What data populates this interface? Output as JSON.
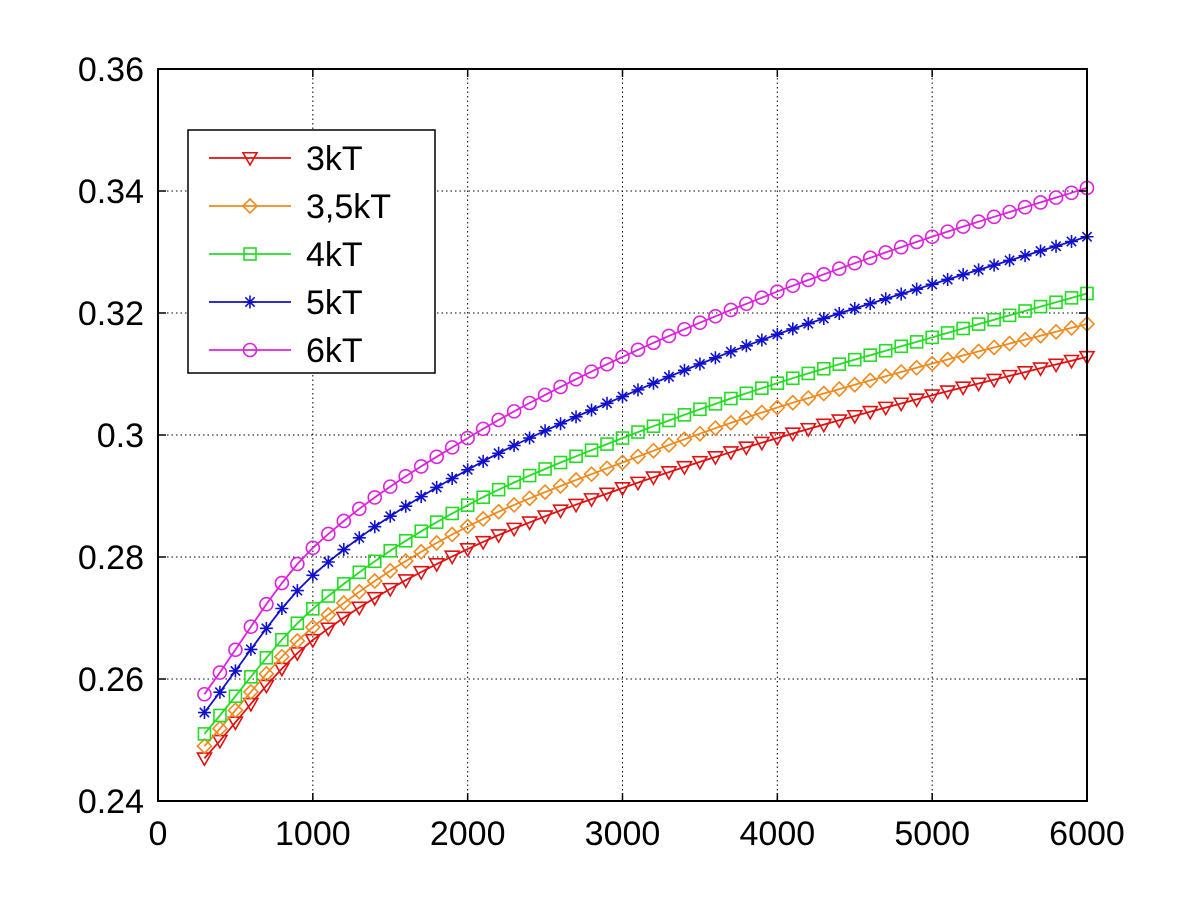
{
  "chart_data": {
    "type": "line",
    "title": "",
    "xlabel": "",
    "ylabel": "",
    "xlim": [
      0,
      6000
    ],
    "ylim": [
      0.24,
      0.36
    ],
    "grid": true,
    "legend_position": "top-left",
    "x_ticks": [
      "0",
      "1000",
      "2000",
      "3000",
      "4000",
      "5000",
      "6000"
    ],
    "y_ticks": [
      "0.24",
      "0.26",
      "0.28",
      "0.3",
      "0.32",
      "0.34",
      "0.36"
    ],
    "x_tick_values": [
      0,
      1000,
      2000,
      3000,
      4000,
      5000,
      6000
    ],
    "y_tick_values": [
      0.24,
      0.26,
      0.28,
      0.3,
      0.32,
      0.34,
      0.36
    ],
    "x": {
      "start": 300,
      "end": 6000,
      "step": 100
    },
    "series": [
      {
        "name": "3kT",
        "color": "#e11111",
        "marker": "triangle-down",
        "anchors": {
          "x": [
            300,
            1000,
            2000,
            3000,
            4000,
            5000,
            6000
          ],
          "y": [
            0.247,
            0.2664,
            0.2813,
            0.2913,
            0.2995,
            0.3065,
            0.3128
          ]
        }
      },
      {
        "name": "3,5kT",
        "color": "#ef8a1f",
        "marker": "diamond",
        "anchors": {
          "x": [
            300,
            1000,
            2000,
            3000,
            4000,
            5000,
            6000
          ],
          "y": [
            0.249,
            0.2685,
            0.285,
            0.2955,
            0.3045,
            0.3117,
            0.3182
          ]
        }
      },
      {
        "name": "4kT",
        "color": "#22dd22",
        "marker": "square",
        "anchors": {
          "x": [
            300,
            1000,
            2000,
            3000,
            4000,
            5000,
            6000
          ],
          "y": [
            0.251,
            0.2715,
            0.2885,
            0.2995,
            0.3085,
            0.316,
            0.3232
          ]
        }
      },
      {
        "name": "5kT",
        "color": "#1111cc",
        "marker": "asterisk",
        "anchors": {
          "x": [
            300,
            1000,
            2000,
            3000,
            4000,
            5000,
            6000
          ],
          "y": [
            0.2545,
            0.277,
            0.2943,
            0.3063,
            0.3165,
            0.3247,
            0.3325
          ]
        }
      },
      {
        "name": "6kT",
        "color": "#dd22dd",
        "marker": "circle",
        "anchors": {
          "x": [
            300,
            1000,
            2000,
            3000,
            4000,
            5000,
            6000
          ],
          "y": [
            0.2575,
            0.2815,
            0.2995,
            0.3128,
            0.3235,
            0.3325,
            0.3405
          ]
        }
      }
    ]
  }
}
